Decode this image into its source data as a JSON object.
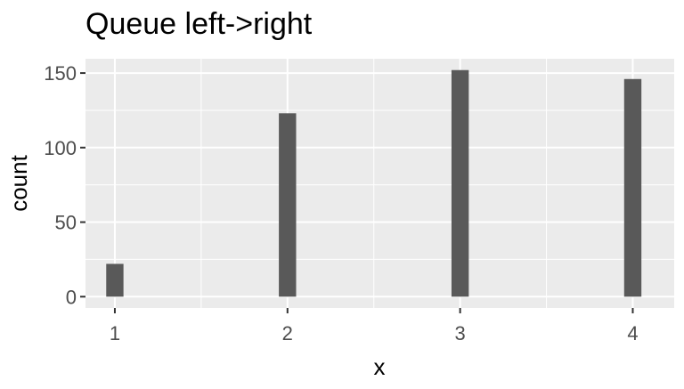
{
  "chart_data": {
    "type": "bar",
    "title": "Queue left->right",
    "xlabel": "x",
    "ylabel": "count",
    "x": [
      1,
      2,
      3,
      4
    ],
    "x_ticks": [
      "1",
      "2",
      "3",
      "4"
    ],
    "values": [
      22,
      123,
      152,
      146
    ],
    "y_ticks": [
      0,
      50,
      100,
      150
    ],
    "xlim": [
      0.83,
      4.24
    ],
    "ylim": [
      -7.6,
      159.6
    ],
    "grid": true,
    "legend": "none",
    "colors": {
      "bar": "#595959",
      "panel": "#ebebeb",
      "grid": "#ffffff",
      "tick": "#333333"
    }
  }
}
